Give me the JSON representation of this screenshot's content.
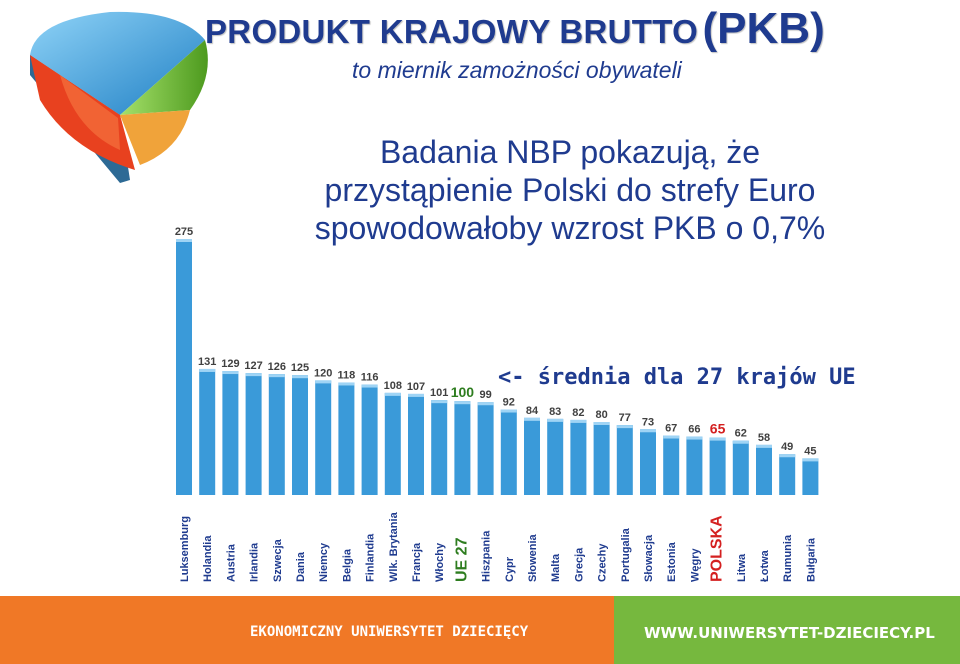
{
  "header": {
    "title_main": "PRODUKT KRAJOWY BRUTTO",
    "title_abbr": "(PKB)",
    "subtitle": "to miernik zamożności obywateli"
  },
  "claim": {
    "line1": "Badania NBP pokazują, że",
    "line2": "przystąpienie Polski do strefy Euro",
    "line3": "spowodowałoby wzrost PKB o 0,7%"
  },
  "average_note": "<- średnia dla 27 krajów UE",
  "footer": {
    "left_text": "EKONOMICZNY UNIWERSYTET DZIECIĘCY",
    "right_text": "WWW.UNIWERSYTET-DZIECIECY.PL"
  },
  "colors": {
    "title": "#1f3b8f",
    "bar": "#3a9ad9",
    "value_label": "#404040",
    "country_label": "#1f3b8f",
    "ue_highlight": "#2e7d1f",
    "poland_highlight": "#d42020",
    "footer_left": "#f07826",
    "footer_right": "#76b83e"
  },
  "chart_data": {
    "type": "bar",
    "categories": [
      "Luksemburg",
      "Holandia",
      "Austria",
      "Irlandia",
      "Szwecja",
      "Dania",
      "Niemcy",
      "Belgia",
      "Finlandia",
      "Wlk. Brytania",
      "Francja",
      "Włochy",
      "UE 27",
      "Hiszpania",
      "Cypr",
      "Słowenia",
      "Malta",
      "Grecja",
      "Czechy",
      "Portugalia",
      "Słowacja",
      "Estonia",
      "Węgry",
      "POLSKA",
      "Litwa",
      "Łotwa",
      "Rumunia",
      "Bułgaria"
    ],
    "values": [
      275,
      131,
      129,
      127,
      126,
      125,
      120,
      118,
      116,
      108,
      107,
      101,
      100,
      99,
      92,
      84,
      83,
      82,
      80,
      77,
      73,
      67,
      66,
      65,
      62,
      58,
      49,
      45
    ],
    "highlight": {
      "UE 27": "ue_highlight",
      "POLSKA": "poland_highlight"
    },
    "title": "",
    "xlabel": "",
    "ylabel": ""
  }
}
